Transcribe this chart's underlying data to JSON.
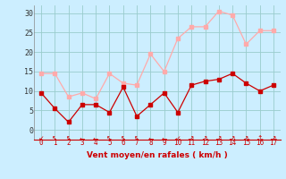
{
  "x": [
    0,
    1,
    2,
    3,
    4,
    5,
    6,
    7,
    8,
    9,
    10,
    11,
    12,
    13,
    14,
    15,
    16,
    17
  ],
  "wind_avg": [
    9.5,
    5.5,
    2.0,
    6.5,
    6.5,
    4.5,
    11.0,
    3.5,
    6.5,
    9.5,
    4.5,
    11.5,
    12.5,
    13.0,
    14.5,
    12.0,
    10.0,
    11.5
  ],
  "wind_gust": [
    14.5,
    14.5,
    8.5,
    9.5,
    8.0,
    14.5,
    12.0,
    11.5,
    19.5,
    15.0,
    23.5,
    26.5,
    26.5,
    30.5,
    29.5,
    22.0,
    25.5,
    25.5
  ],
  "color_avg": "#cc0000",
  "color_gust": "#ffaaaa",
  "bg_color": "#cceeff",
  "grid_color": "#99cccc",
  "xlabel": "Vent moyen/en rafales ( km/h )",
  "xlabel_color": "#cc0000",
  "ylabel_ticks": [
    0,
    5,
    10,
    15,
    20,
    25,
    30
  ],
  "ylim": [
    -2.5,
    32
  ],
  "xlim": [
    -0.5,
    17.5
  ],
  "arrow_chars": [
    "↙",
    "↖",
    "↖",
    "←",
    "←",
    "↖",
    "↖",
    "↖",
    "←",
    "←",
    "↙",
    "↗",
    "↗",
    "↗",
    "↗",
    "↗",
    "↑",
    "↗"
  ]
}
